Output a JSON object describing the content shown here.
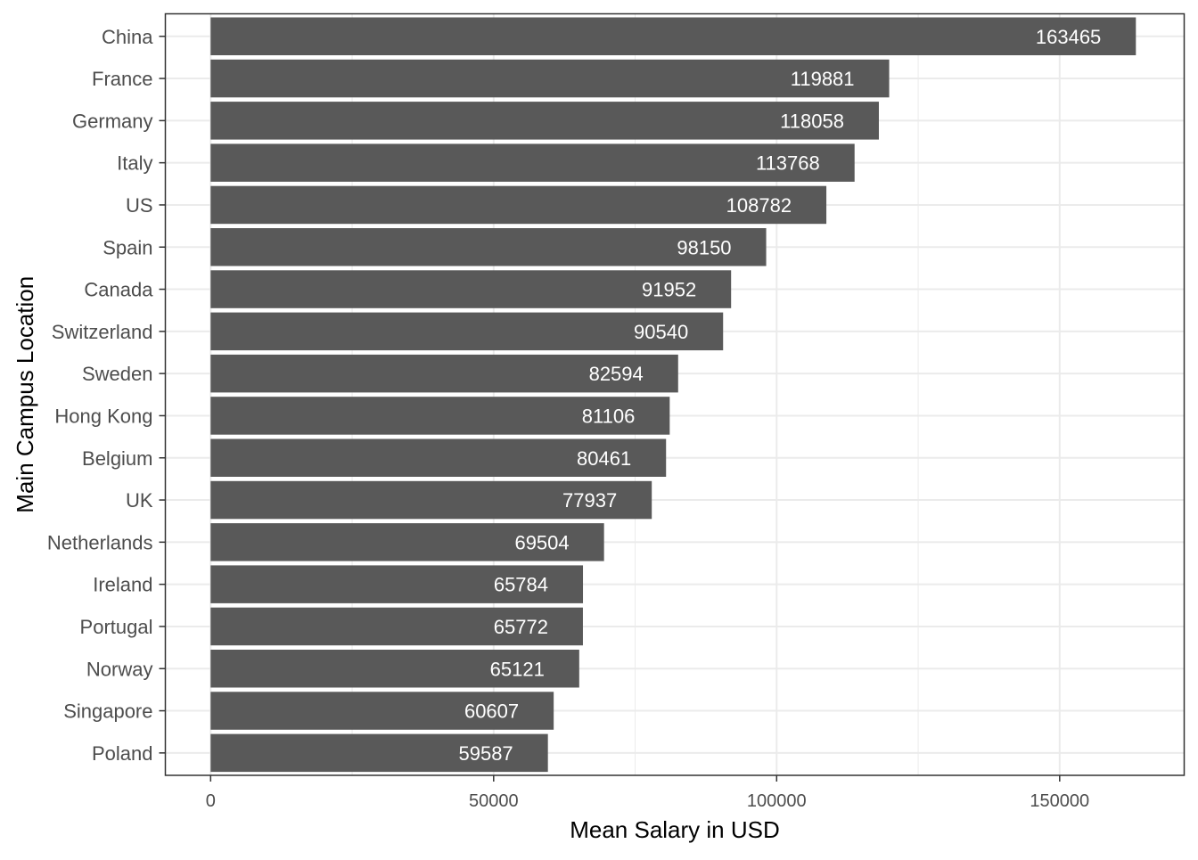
{
  "chart_data": {
    "type": "bar",
    "orientation": "horizontal",
    "categories": [
      "China",
      "France",
      "Germany",
      "Italy",
      "US",
      "Spain",
      "Canada",
      "Switzerland",
      "Sweden",
      "Hong Kong",
      "Belgium",
      "UK",
      "Netherlands",
      "Ireland",
      "Portugal",
      "Norway",
      "Singapore",
      "Poland"
    ],
    "values": [
      163465,
      119881,
      118058,
      113768,
      108782,
      98150,
      91952,
      90540,
      82594,
      81106,
      80461,
      77937,
      69504,
      65784,
      65772,
      65121,
      60607,
      59587
    ],
    "data_labels": [
      "163465",
      "119881",
      "118058",
      "113768",
      "108782",
      "98150",
      "91952",
      "90540",
      "82594",
      "81106",
      "80461",
      "77937",
      "69504",
      "65784",
      "65772",
      "65121",
      "60607",
      "59587"
    ],
    "xlabel": "Mean Salary in USD",
    "ylabel": "Main Campus Location",
    "xlim": [
      -8000,
      172000
    ],
    "x_ticks": [
      0,
      50000,
      100000,
      150000
    ],
    "x_tick_labels": [
      "0",
      "50000",
      "100000",
      "150000"
    ],
    "x_minor_ticks": [
      25000,
      75000,
      125000
    ],
    "grid": true,
    "legend": "none",
    "colors": {
      "bar": "#595959",
      "bar_label": "#ffffff",
      "grid": "#ebebeb",
      "panel_border": "#333333",
      "tick": "#333333",
      "tick_label": "#4d4d4d",
      "axis_title": "#000000"
    }
  }
}
